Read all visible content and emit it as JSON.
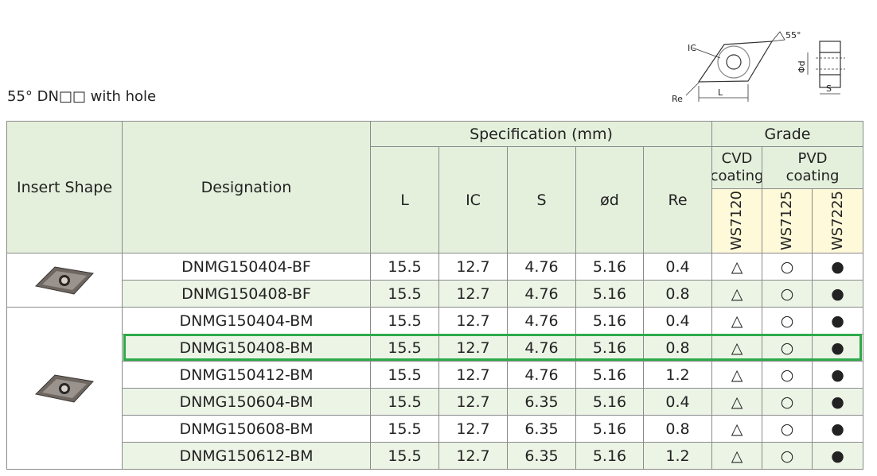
{
  "title": "55° DN□□ with hole",
  "diagram": {
    "ic": "IC",
    "angle": "55°",
    "re": "Re",
    "l": "L",
    "d": "Φd",
    "s": "S"
  },
  "table": {
    "headers": {
      "insert_shape": "Insert Shape",
      "designation": "Designation",
      "specification": "Specification (mm)",
      "grade": "Grade",
      "columns": [
        "L",
        "IC",
        "S",
        "ød",
        "Re"
      ],
      "cvd": "CVD coating",
      "pvd": "PVD coating",
      "grades": [
        "WS7120",
        "WS7125",
        "WS7225"
      ]
    },
    "rows": [
      [
        "DNMG150404-BF",
        "15.5",
        "12.7",
        "4.76",
        "5.16",
        "0.4",
        "△",
        "○",
        "●"
      ],
      [
        "DNMG150408-BF",
        "15.5",
        "12.7",
        "4.76",
        "5.16",
        "0.8",
        "△",
        "○",
        "●"
      ],
      [
        "DNMG150404-BM",
        "15.5",
        "12.7",
        "4.76",
        "5.16",
        "0.4",
        "△",
        "○",
        "●"
      ],
      [
        "DNMG150408-BM",
        "15.5",
        "12.7",
        "4.76",
        "5.16",
        "0.8",
        "△",
        "○",
        "●"
      ],
      [
        "DNMG150412-BM",
        "15.5",
        "12.7",
        "4.76",
        "5.16",
        "1.2",
        "△",
        "○",
        "●"
      ],
      [
        "DNMG150604-BM",
        "15.5",
        "12.7",
        "6.35",
        "5.16",
        "0.4",
        "△",
        "○",
        "●"
      ],
      [
        "DNMG150608-BM",
        "15.5",
        "12.7",
        "6.35",
        "5.16",
        "0.8",
        "△",
        "○",
        "●"
      ],
      [
        "DNMG150612-BM",
        "15.5",
        "12.7",
        "6.35",
        "5.16",
        "1.2",
        "△",
        "○",
        "●"
      ]
    ]
  }
}
